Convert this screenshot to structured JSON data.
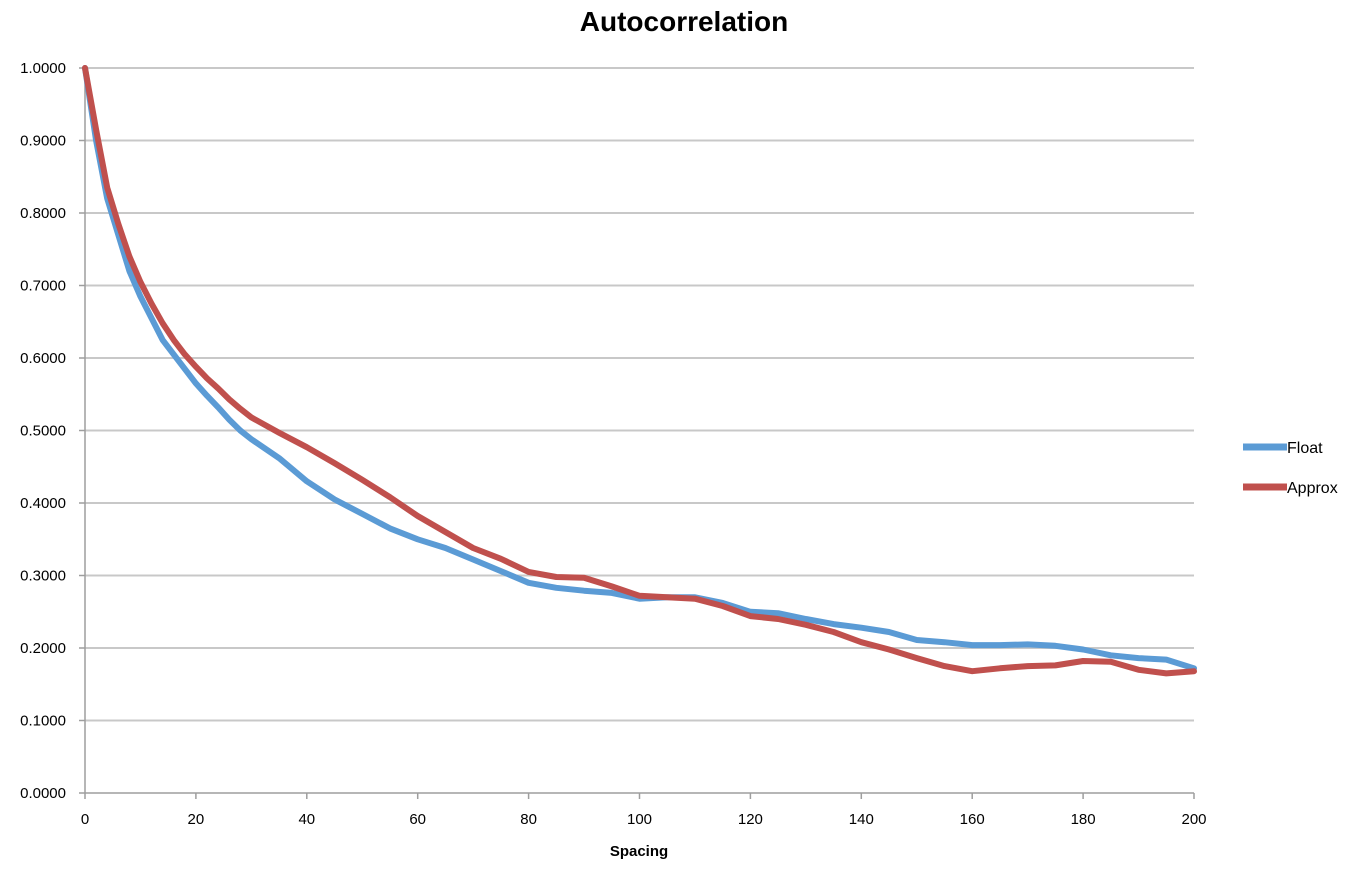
{
  "chart_data": {
    "type": "line",
    "title": "Autocorrelation",
    "xlabel": "Spacing",
    "ylabel": "",
    "xlim": [
      0,
      200
    ],
    "ylim": [
      0,
      1
    ],
    "x_ticks": [
      "0",
      "20",
      "40",
      "60",
      "80",
      "100",
      "120",
      "140",
      "160",
      "180",
      "200"
    ],
    "y_ticks": [
      "0.0000",
      "0.1000",
      "0.2000",
      "0.3000",
      "0.4000",
      "0.5000",
      "0.6000",
      "0.7000",
      "0.8000",
      "0.9000",
      "1.0000"
    ],
    "grid": "horizontal",
    "legend_position": "right",
    "series": [
      {
        "name": "Float",
        "color": "#5b9bd5",
        "x": [
          0,
          2,
          4,
          6,
          8,
          10,
          12,
          14,
          16,
          18,
          20,
          22,
          24,
          26,
          28,
          30,
          35,
          40,
          45,
          50,
          55,
          60,
          65,
          70,
          75,
          80,
          85,
          90,
          95,
          100,
          105,
          110,
          115,
          120,
          125,
          130,
          135,
          140,
          145,
          150,
          155,
          160,
          165,
          170,
          175,
          180,
          185,
          190,
          195,
          200
        ],
        "y": [
          1.0,
          0.9,
          0.82,
          0.77,
          0.72,
          0.685,
          0.655,
          0.625,
          0.605,
          0.585,
          0.565,
          0.548,
          0.532,
          0.515,
          0.5,
          0.488,
          0.462,
          0.43,
          0.405,
          0.385,
          0.365,
          0.35,
          0.338,
          0.322,
          0.306,
          0.29,
          0.283,
          0.279,
          0.276,
          0.268,
          0.27,
          0.27,
          0.262,
          0.25,
          0.248,
          0.24,
          0.233,
          0.228,
          0.222,
          0.211,
          0.208,
          0.204,
          0.204,
          0.205,
          0.203,
          0.198,
          0.19,
          0.186,
          0.184,
          0.172
        ]
      },
      {
        "name": "Approx",
        "color": "#c0504d",
        "x": [
          0,
          2,
          4,
          6,
          8,
          10,
          12,
          14,
          16,
          18,
          20,
          22,
          24,
          26,
          28,
          30,
          35,
          40,
          45,
          50,
          55,
          60,
          65,
          70,
          75,
          80,
          85,
          90,
          95,
          100,
          105,
          110,
          115,
          120,
          125,
          130,
          135,
          140,
          145,
          150,
          155,
          160,
          165,
          170,
          175,
          180,
          185,
          190,
          195,
          200
        ],
        "y": [
          1.0,
          0.915,
          0.835,
          0.785,
          0.74,
          0.705,
          0.675,
          0.648,
          0.625,
          0.605,
          0.588,
          0.572,
          0.558,
          0.543,
          0.53,
          0.518,
          0.497,
          0.477,
          0.455,
          0.432,
          0.408,
          0.382,
          0.36,
          0.338,
          0.323,
          0.305,
          0.298,
          0.297,
          0.285,
          0.272,
          0.27,
          0.268,
          0.258,
          0.244,
          0.24,
          0.232,
          0.222,
          0.208,
          0.198,
          0.186,
          0.175,
          0.168,
          0.172,
          0.175,
          0.176,
          0.182,
          0.181,
          0.17,
          0.165,
          0.168
        ]
      }
    ]
  }
}
